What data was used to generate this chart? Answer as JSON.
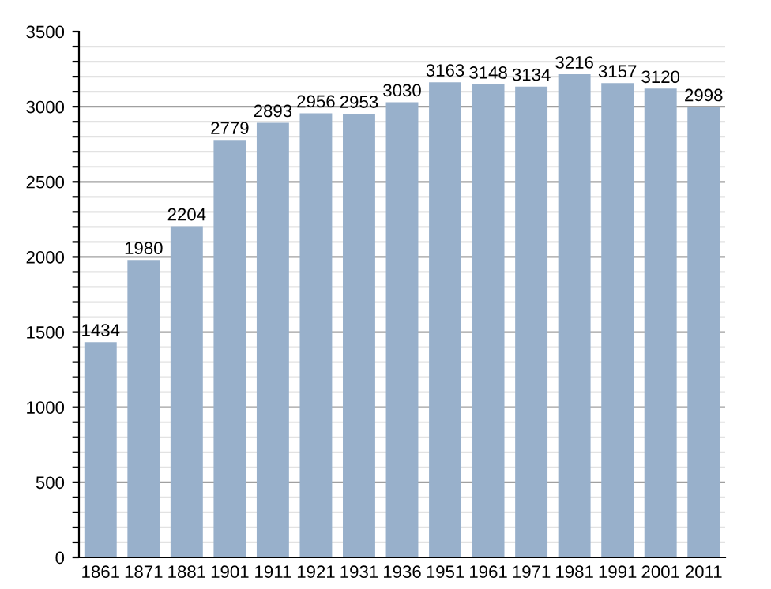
{
  "chart_data": {
    "type": "bar",
    "categories": [
      "1861",
      "1871",
      "1881",
      "1901",
      "1911",
      "1921",
      "1931",
      "1936",
      "1951",
      "1961",
      "1971",
      "1981",
      "1991",
      "2001",
      "2011"
    ],
    "values": [
      1434,
      1980,
      2204,
      2779,
      2893,
      2956,
      2953,
      3030,
      3163,
      3148,
      3134,
      3216,
      3157,
      3120,
      2998
    ],
    "color": "#98b0cb",
    "data_labels": true,
    "grid": "y",
    "ylim": [
      0,
      3500
    ],
    "yticks": [
      0,
      {
        "value": 100,
        "label": null
      },
      {
        "value": 200,
        "label": null
      },
      {
        "value": 300,
        "label": null
      },
      {
        "value": 400,
        "label": null
      },
      500,
      {
        "value": 600,
        "label": null
      },
      {
        "value": 700,
        "label": null
      },
      {
        "value": 800,
        "label": null
      },
      {
        "value": 900,
        "label": null
      },
      1000,
      {
        "value": 1100,
        "label": null
      },
      {
        "value": 1200,
        "label": null
      },
      {
        "value": 1300,
        "label": null
      },
      {
        "value": 1400,
        "label": null
      },
      1500,
      {
        "value": 1600,
        "label": null
      },
      {
        "value": 1700,
        "label": null
      },
      {
        "value": 1800,
        "label": null
      },
      {
        "value": 1900,
        "label": null
      },
      2000,
      {
        "value": 2100,
        "label": null
      },
      {
        "value": 2200,
        "label": null
      },
      {
        "value": 2300,
        "label": null
      },
      {
        "value": 2400,
        "label": null
      },
      2500,
      {
        "value": 2600,
        "label": null
      },
      {
        "value": 2700,
        "label": null
      },
      {
        "value": 2800,
        "label": null
      },
      {
        "value": 2900,
        "label": null
      },
      3000,
      {
        "value": 3100,
        "label": null
      },
      {
        "value": 3200,
        "label": null
      },
      {
        "value": 3300,
        "label": null
      },
      {
        "value": 3400,
        "label": null
      },
      3500
    ]
  }
}
